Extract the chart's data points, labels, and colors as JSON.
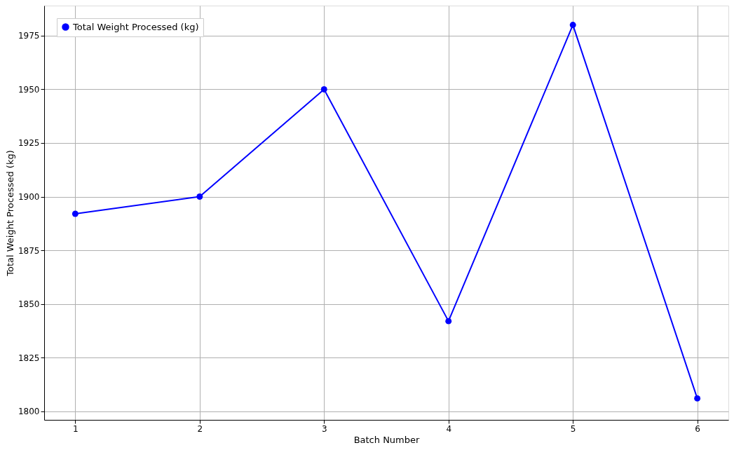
{
  "chart_data": {
    "type": "line",
    "xlabel": "Batch Number",
    "ylabel": "Total Weight Processed (kg)",
    "x": [
      1,
      2,
      3,
      4,
      5,
      6
    ],
    "series": [
      {
        "name": "Total Weight Processed (kg)",
        "color": "#0000ff",
        "values": [
          1892,
          1900,
          1950,
          1842,
          1980,
          1806
        ]
      }
    ],
    "xlim": [
      0.75,
      6.25
    ],
    "xticks": [
      1,
      2,
      3,
      4,
      5,
      6
    ],
    "ylim": [
      1796,
      1989
    ],
    "yticks": [
      1800,
      1825,
      1850,
      1875,
      1900,
      1925,
      1950,
      1975
    ],
    "grid": true,
    "legend": "top left",
    "marker": "circle",
    "line_style": "solid"
  }
}
